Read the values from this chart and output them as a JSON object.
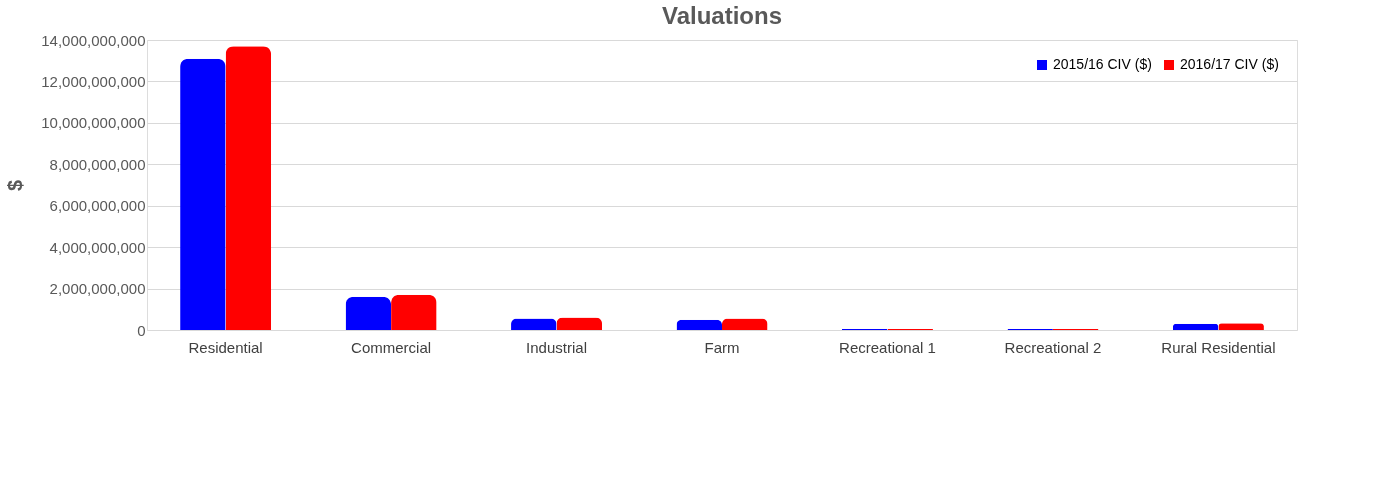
{
  "chart_data": {
    "type": "bar",
    "title": "Valuations",
    "ylabel": "$",
    "categories": [
      "Residential",
      "Commercial",
      "Industrial",
      "Farm",
      "Recreational 1",
      "Recreational 2",
      "Rural Residential"
    ],
    "series": [
      {
        "name": "2015/16 CIV ($)",
        "color": "#0000ff",
        "values": [
          13100000000,
          1600000000,
          550000000,
          500000000,
          50000000,
          50000000,
          300000000
        ]
      },
      {
        "name": "2016/17 CIV ($)",
        "color": "#ff0000",
        "values": [
          13700000000,
          1700000000,
          600000000,
          550000000,
          50000000,
          50000000,
          330000000
        ]
      }
    ],
    "ylim": [
      0,
      14000000000
    ],
    "yticks": [
      {
        "value": 0,
        "label": "0"
      },
      {
        "value": 2000000000,
        "label": "2,000,000,000"
      },
      {
        "value": 4000000000,
        "label": "4,000,000,000"
      },
      {
        "value": 6000000000,
        "label": "6,000,000,000"
      },
      {
        "value": 8000000000,
        "label": "8,000,000,000"
      },
      {
        "value": 10000000000,
        "label": "10,000,000,000"
      },
      {
        "value": 12000000000,
        "label": "12,000,000,000"
      },
      {
        "value": 14000000000,
        "label": "14,000,000,000"
      }
    ],
    "grid": "y",
    "legend": "top right"
  }
}
